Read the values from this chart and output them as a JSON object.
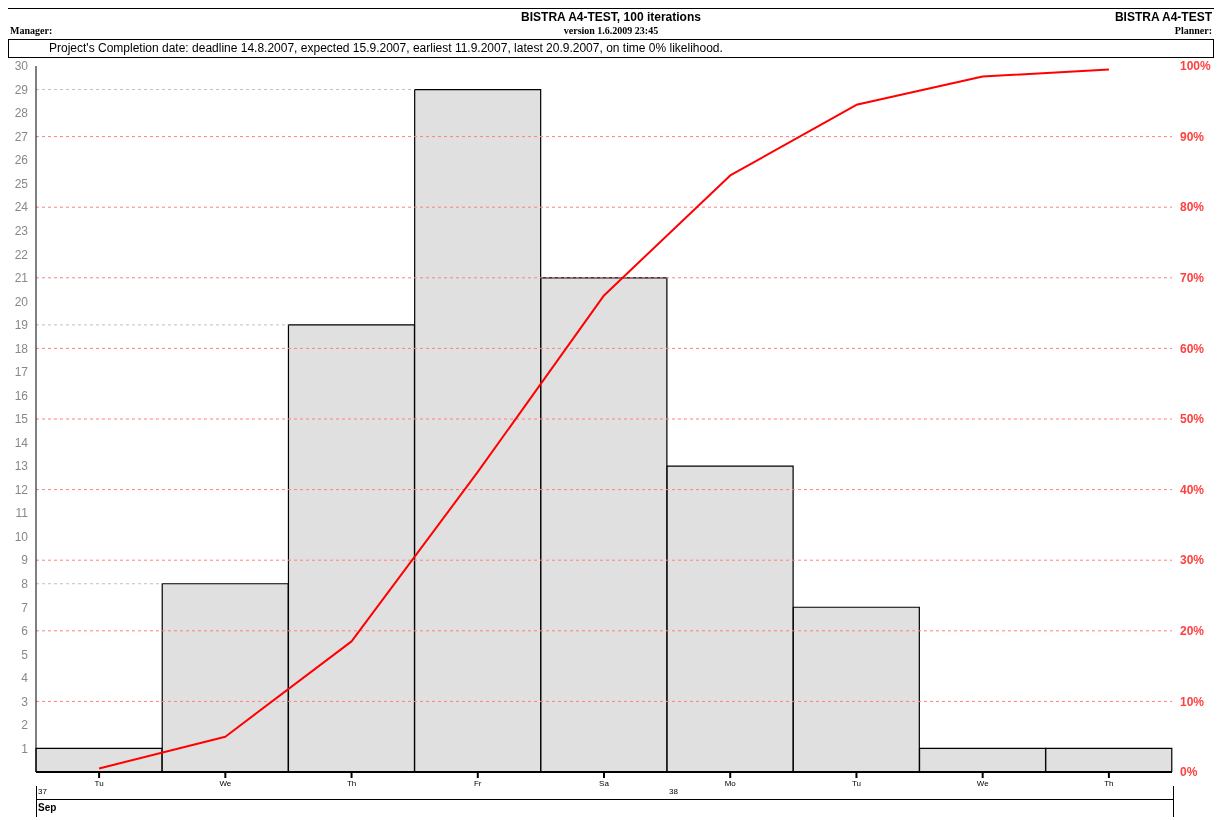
{
  "chart_data": {
    "type": "bar",
    "title": "BISTRA A4-TEST, 100 iterations",
    "subtitle": "version 1.6.2009 23:45",
    "annotations": [
      "Manager:",
      "BISTRA A4-TEST",
      "Planner:",
      "Project's Completion date: deadline 14.8.2007, expected 15.9.2007, earliest 11.9.2007, latest 20.9.2007, on time 0% likelihood.",
      "37",
      "38",
      "Sep"
    ],
    "categories": [
      "Tu",
      "We",
      "Th",
      "Fr",
      "Sa",
      "Mo",
      "Tu",
      "We",
      "Th"
    ],
    "values": [
      1,
      8,
      19,
      29,
      21,
      13,
      7,
      1,
      1
    ],
    "color": "#e0e0e0",
    "series": [
      {
        "type": "line",
        "values": [
          0.5,
          5,
          18.5,
          42.5,
          67.5,
          84.5,
          94.5,
          98.5,
          99.5
        ],
        "axis": "y2",
        "color": "#ff0000"
      }
    ],
    "ylim": [
      0,
      30
    ],
    "yticks": [
      1,
      2,
      3,
      4,
      5,
      6,
      7,
      8,
      9,
      10,
      11,
      12,
      13,
      14,
      15,
      16,
      17,
      18,
      19,
      20,
      21,
      22,
      23,
      24,
      25,
      26,
      27,
      28,
      29,
      30
    ],
    "y2lim": [
      0,
      100
    ],
    "y2ticks": [
      {
        "value": 0,
        "label": "0%"
      },
      {
        "value": 10,
        "label": "10%"
      },
      {
        "value": 20,
        "label": "20%"
      },
      {
        "value": 30,
        "label": "30%"
      },
      {
        "value": 40,
        "label": "40%"
      },
      {
        "value": 50,
        "label": "50%"
      },
      {
        "value": 60,
        "label": "60%"
      },
      {
        "value": 70,
        "label": "70%"
      },
      {
        "value": 80,
        "label": "80%"
      },
      {
        "value": 90,
        "label": "90%"
      },
      {
        "value": 100,
        "label": "100%"
      }
    ],
    "ref_lines": [
      {
        "axis": "y",
        "value": 8,
        "color": "#c0c0c0",
        "line_style": "dashed"
      },
      {
        "axis": "y",
        "value": 19,
        "color": "#c0c0c0",
        "line_style": "dashed"
      },
      {
        "axis": "y",
        "value": 29,
        "color": "#c0c0c0",
        "line_style": "dashed"
      },
      {
        "axis": "y2",
        "value": 10,
        "color": "#ff8080",
        "line_style": "dashed"
      },
      {
        "axis": "y2",
        "value": 20,
        "color": "#ff8080",
        "line_style": "dashed"
      },
      {
        "axis": "y2",
        "value": 30,
        "color": "#ff8080",
        "line_style": "dashed"
      },
      {
        "axis": "y2",
        "value": 40,
        "color": "#ff8080",
        "line_style": "dashed"
      },
      {
        "axis": "y2",
        "value": 50,
        "color": "#ff8080",
        "line_style": "dashed"
      },
      {
        "axis": "y2",
        "value": 60,
        "color": "#ff8080",
        "line_style": "dashed"
      },
      {
        "axis": "y2",
        "value": 70,
        "color": "#ff8080",
        "line_style": "dashed"
      },
      {
        "axis": "y2",
        "value": 80,
        "color": "#ff8080",
        "line_style": "dashed"
      },
      {
        "axis": "y2",
        "value": 90,
        "color": "#ff8080",
        "line_style": "dashed"
      }
    ],
    "marker": "none",
    "line_style": "solid"
  }
}
